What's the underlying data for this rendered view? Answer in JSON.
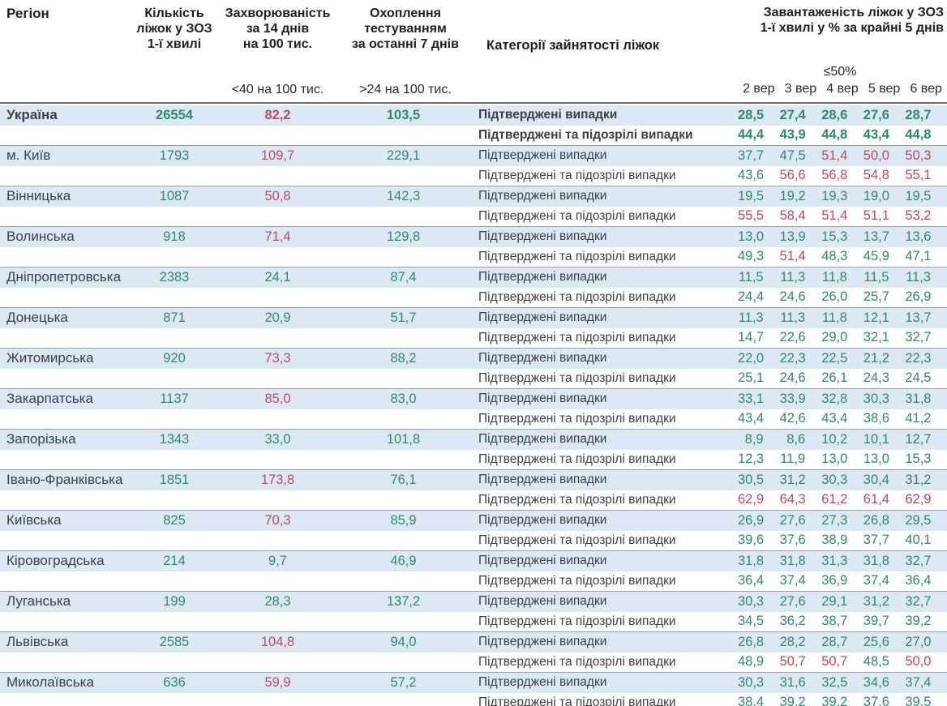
{
  "colors": {
    "positive_green": "#2e8b6a",
    "negative_red": "#bd4a5e",
    "row_highlight_blue": "#dce9f4",
    "separator_gray": "#9a9ea2"
  },
  "header": {
    "region": "Регіон",
    "beds_lines": [
      "Кількість",
      "ліжок у ЗОЗ",
      "1-ї хвилі"
    ],
    "incidence_lines": [
      "Захворюваність",
      "за 14 днів",
      "на 100 тис."
    ],
    "testing_lines": [
      "Охоплення",
      "тестуванням",
      "за останні 7 днів"
    ],
    "category": "Категорії зайнятості ліжок",
    "load_lines": [
      "Завантаженість ліжок у ЗОЗ",
      "1-ї хвилі у % за крайні 5 днів"
    ],
    "incidence_threshold": "<40 на 100 тис.",
    "testing_threshold": ">24 на 100 тис.",
    "load_threshold": "≤50%",
    "dates": [
      "2 вер",
      "3 вер",
      "4 вер",
      "5 вер",
      "6 вер"
    ]
  },
  "labels": {
    "confirmed": "Підтверджені випадки",
    "suspected": "Підтверджені та підозрілі випадки"
  },
  "regions": [
    {
      "name": "Україна",
      "bold": true,
      "beds": "26554",
      "beds_c": "g",
      "incidence": "82,2",
      "incidence_c": "r",
      "testing": "103,5",
      "testing_c": "g",
      "confirmed": [
        "28,5",
        "27,4",
        "28,6",
        "27,6",
        "28,7"
      ],
      "confirmed_c": [
        "g",
        "g",
        "g",
        "g",
        "g"
      ],
      "suspected": [
        "44,4",
        "43,9",
        "44,8",
        "43,4",
        "44,8"
      ],
      "suspected_c": [
        "g",
        "g",
        "g",
        "g",
        "g"
      ]
    },
    {
      "name": "м. Київ",
      "bold": false,
      "beds": "1793",
      "beds_c": "g",
      "incidence": "109,7",
      "incidence_c": "r",
      "testing": "229,1",
      "testing_c": "g",
      "confirmed": [
        "37,7",
        "47,5",
        "51,4",
        "50,0",
        "50,3"
      ],
      "confirmed_c": [
        "g",
        "g",
        "r",
        "r",
        "r"
      ],
      "suspected": [
        "43,6",
        "56,6",
        "56,8",
        "54,8",
        "55,1"
      ],
      "suspected_c": [
        "g",
        "r",
        "r",
        "r",
        "r"
      ]
    },
    {
      "name": "Вінницька",
      "bold": false,
      "beds": "1087",
      "beds_c": "g",
      "incidence": "50,8",
      "incidence_c": "r",
      "testing": "142,3",
      "testing_c": "g",
      "confirmed": [
        "19,5",
        "19,2",
        "19,3",
        "19,0",
        "19,5"
      ],
      "confirmed_c": [
        "g",
        "g",
        "g",
        "g",
        "g"
      ],
      "suspected": [
        "55,5",
        "58,4",
        "51,4",
        "51,1",
        "53,2"
      ],
      "suspected_c": [
        "r",
        "r",
        "r",
        "r",
        "r"
      ]
    },
    {
      "name": "Волинська",
      "bold": false,
      "beds": "918",
      "beds_c": "g",
      "incidence": "71,4",
      "incidence_c": "r",
      "testing": "129,8",
      "testing_c": "g",
      "confirmed": [
        "13,0",
        "13,9",
        "15,3",
        "13,7",
        "13,6"
      ],
      "confirmed_c": [
        "g",
        "g",
        "g",
        "g",
        "g"
      ],
      "suspected": [
        "49,3",
        "51,4",
        "48,3",
        "45,9",
        "47,1"
      ],
      "suspected_c": [
        "g",
        "r",
        "g",
        "g",
        "g"
      ]
    },
    {
      "name": "Дніпропетровська",
      "bold": false,
      "beds": "2383",
      "beds_c": "g",
      "incidence": "24,1",
      "incidence_c": "g",
      "testing": "87,4",
      "testing_c": "g",
      "confirmed": [
        "11,5",
        "11,3",
        "11,8",
        "11,5",
        "11,3"
      ],
      "confirmed_c": [
        "g",
        "g",
        "g",
        "g",
        "g"
      ],
      "suspected": [
        "24,4",
        "24,6",
        "26,0",
        "25,7",
        "26,9"
      ],
      "suspected_c": [
        "g",
        "g",
        "g",
        "g",
        "g"
      ]
    },
    {
      "name": "Донецька",
      "bold": false,
      "beds": "871",
      "beds_c": "g",
      "incidence": "20,9",
      "incidence_c": "g",
      "testing": "51,7",
      "testing_c": "g",
      "confirmed": [
        "11,3",
        "11,3",
        "11,8",
        "12,1",
        "13,7"
      ],
      "confirmed_c": [
        "g",
        "g",
        "g",
        "g",
        "g"
      ],
      "suspected": [
        "14,7",
        "22,6",
        "29,0",
        "32,1",
        "32,7"
      ],
      "suspected_c": [
        "g",
        "g",
        "g",
        "g",
        "g"
      ]
    },
    {
      "name": "Житомирська",
      "bold": false,
      "beds": "920",
      "beds_c": "g",
      "incidence": "73,3",
      "incidence_c": "r",
      "testing": "88,2",
      "testing_c": "g",
      "confirmed": [
        "22,0",
        "22,3",
        "22,5",
        "21,2",
        "22,3"
      ],
      "confirmed_c": [
        "g",
        "g",
        "g",
        "g",
        "g"
      ],
      "suspected": [
        "25,1",
        "24,6",
        "26,1",
        "24,3",
        "24,5"
      ],
      "suspected_c": [
        "g",
        "g",
        "g",
        "g",
        "g"
      ]
    },
    {
      "name": "Закарпатська",
      "bold": false,
      "beds": "1137",
      "beds_c": "g",
      "incidence": "85,0",
      "incidence_c": "r",
      "testing": "83,0",
      "testing_c": "g",
      "confirmed": [
        "33,1",
        "33,9",
        "32,8",
        "30,3",
        "31,8"
      ],
      "confirmed_c": [
        "g",
        "g",
        "g",
        "g",
        "g"
      ],
      "suspected": [
        "43,4",
        "42,6",
        "43,4",
        "38,6",
        "41,2"
      ],
      "suspected_c": [
        "g",
        "g",
        "g",
        "g",
        "g"
      ]
    },
    {
      "name": "Запорізька",
      "bold": false,
      "beds": "1343",
      "beds_c": "g",
      "incidence": "33,0",
      "incidence_c": "g",
      "testing": "101,8",
      "testing_c": "g",
      "confirmed": [
        "8,9",
        "8,6",
        "10,2",
        "10,1",
        "12,7"
      ],
      "confirmed_c": [
        "g",
        "g",
        "g",
        "g",
        "g"
      ],
      "suspected": [
        "12,3",
        "11,9",
        "13,0",
        "13,0",
        "15,3"
      ],
      "suspected_c": [
        "g",
        "g",
        "g",
        "g",
        "g"
      ]
    },
    {
      "name": "Івано-Франківська",
      "bold": false,
      "beds": "1851",
      "beds_c": "g",
      "incidence": "173,8",
      "incidence_c": "r",
      "testing": "76,1",
      "testing_c": "g",
      "confirmed": [
        "30,5",
        "31,2",
        "30,3",
        "30,4",
        "31,2"
      ],
      "confirmed_c": [
        "g",
        "g",
        "g",
        "g",
        "g"
      ],
      "suspected": [
        "62,9",
        "64,3",
        "61,2",
        "61,4",
        "62,9"
      ],
      "suspected_c": [
        "r",
        "r",
        "r",
        "r",
        "r"
      ]
    },
    {
      "name": "Київська",
      "bold": false,
      "beds": "825",
      "beds_c": "g",
      "incidence": "70,3",
      "incidence_c": "r",
      "testing": "85,9",
      "testing_c": "g",
      "confirmed": [
        "26,9",
        "27,6",
        "27,3",
        "26,8",
        "29,5"
      ],
      "confirmed_c": [
        "g",
        "g",
        "g",
        "g",
        "g"
      ],
      "suspected": [
        "39,6",
        "37,6",
        "38,9",
        "37,7",
        "40,1"
      ],
      "suspected_c": [
        "g",
        "g",
        "g",
        "g",
        "g"
      ]
    },
    {
      "name": "Кіровоградська",
      "bold": false,
      "beds": "214",
      "beds_c": "g",
      "incidence": "9,7",
      "incidence_c": "g",
      "testing": "46,9",
      "testing_c": "g",
      "confirmed": [
        "31,8",
        "31,8",
        "31,3",
        "31,8",
        "32,7"
      ],
      "confirmed_c": [
        "g",
        "g",
        "g",
        "g",
        "g"
      ],
      "suspected": [
        "36,4",
        "37,4",
        "36,9",
        "37,4",
        "36,4"
      ],
      "suspected_c": [
        "g",
        "g",
        "g",
        "g",
        "g"
      ]
    },
    {
      "name": "Луганська",
      "bold": false,
      "beds": "199",
      "beds_c": "g",
      "incidence": "28,3",
      "incidence_c": "g",
      "testing": "137,2",
      "testing_c": "g",
      "confirmed": [
        "30,3",
        "27,6",
        "29,1",
        "31,2",
        "32,7"
      ],
      "confirmed_c": [
        "g",
        "g",
        "g",
        "g",
        "g"
      ],
      "suspected": [
        "34,5",
        "36,2",
        "38,7",
        "39,7",
        "39,2"
      ],
      "suspected_c": [
        "g",
        "g",
        "g",
        "g",
        "g"
      ]
    },
    {
      "name": "Львівська",
      "bold": false,
      "beds": "2585",
      "beds_c": "g",
      "incidence": "104,8",
      "incidence_c": "r",
      "testing": "94,0",
      "testing_c": "g",
      "confirmed": [
        "26,8",
        "28,2",
        "28,7",
        "25,6",
        "27,0"
      ],
      "confirmed_c": [
        "g",
        "g",
        "g",
        "g",
        "g"
      ],
      "suspected": [
        "48,9",
        "50,7",
        "50,7",
        "48,5",
        "50,0"
      ],
      "suspected_c": [
        "g",
        "r",
        "r",
        "g",
        "r"
      ]
    },
    {
      "name": "Миколаївська",
      "bold": false,
      "beds": "636",
      "beds_c": "g",
      "incidence": "59,9",
      "incidence_c": "r",
      "testing": "57,2",
      "testing_c": "g",
      "confirmed": [
        "30,3",
        "31,6",
        "32,5",
        "34,6",
        "37,4"
      ],
      "confirmed_c": [
        "g",
        "g",
        "g",
        "g",
        "g"
      ],
      "suspected": [
        "38,4",
        "39,2",
        "39,2",
        "37,6",
        "39,5"
      ],
      "suspected_c": [
        "g",
        "g",
        "g",
        "g",
        "g"
      ]
    }
  ]
}
